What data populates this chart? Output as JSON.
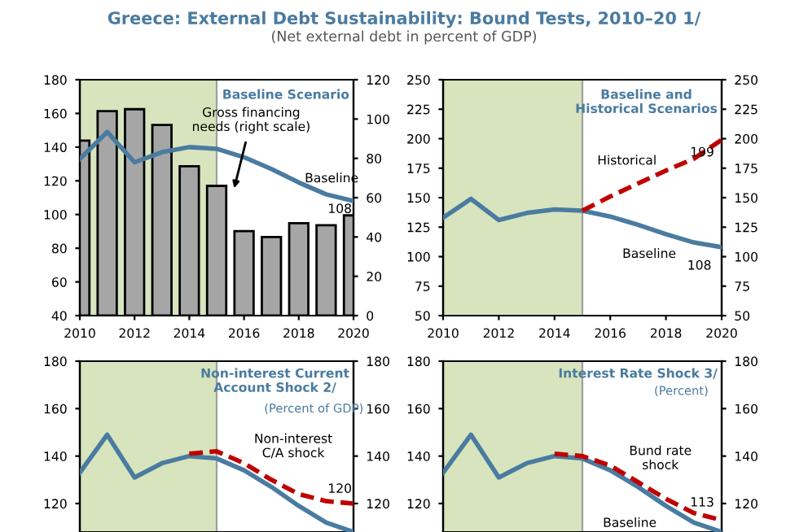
{
  "chart_data": [
    {
      "type": "line",
      "title": "Baseline Scenario",
      "x": [
        2010,
        2011,
        2012,
        2013,
        2014,
        2015,
        2016,
        2017,
        2018,
        2019,
        2020
      ],
      "series": [
        {
          "type": "bar",
          "axis": "y2",
          "color": "#a6a6a6",
          "values": [
            89,
            104,
            105,
            97,
            76,
            66,
            43,
            40,
            47,
            46,
            51
          ]
        },
        {
          "color": "#4a7ba0",
          "values": [
            133,
            149,
            131,
            137,
            140,
            139,
            134,
            127,
            119,
            112,
            108
          ]
        }
      ],
      "xlim": [
        2010,
        2020
      ],
      "xticks": [
        2010,
        2012,
        2014,
        2016,
        2018,
        2020
      ],
      "ylim": [
        40,
        180
      ],
      "yticks": [
        40,
        60,
        80,
        100,
        120,
        140,
        160,
        180
      ],
      "y2lim": [
        0,
        120
      ],
      "y2ticks": [
        0,
        20,
        40,
        60,
        80,
        100,
        120
      ],
      "bands": [
        {
          "axis": "x",
          "from": 2010,
          "to": 2015,
          "color": "#d7e4bd"
        }
      ],
      "legend": false,
      "annotations": [
        "Greece: External Debt Sustainability: Bound Tests, 2010–20 1/",
        "(Net external debt in percent of GDP)",
        {
          "text": "Gross financing needs (right scale)",
          "x": 2015.6,
          "y": 113
        },
        "Baseline",
        "108"
      ]
    },
    {
      "type": "line",
      "title": "Baseline and Historical Scenarios",
      "x": [
        2010,
        2011,
        2012,
        2013,
        2014,
        2015,
        2016,
        2017,
        2018,
        2019,
        2020
      ],
      "series": [
        {
          "color": "#4a7ba0",
          "values": [
            133,
            149,
            131,
            137,
            140,
            139,
            134,
            127,
            119,
            112,
            108
          ]
        },
        {
          "color": "#c00000",
          "line_style": "dashed",
          "x": [
            2015,
            2016,
            2017,
            2018,
            2019,
            2020
          ],
          "values": [
            139,
            151,
            162,
            173,
            183,
            199
          ]
        }
      ],
      "xlim": [
        2010,
        2020
      ],
      "xticks": [
        2010,
        2012,
        2014,
        2016,
        2018,
        2020
      ],
      "ylim": [
        50,
        250
      ],
      "yticks": [
        50,
        75,
        100,
        125,
        150,
        175,
        200,
        225,
        250
      ],
      "y2lim": [
        50,
        250
      ],
      "y2ticks": [
        50,
        75,
        100,
        125,
        150,
        175,
        200,
        225,
        250
      ],
      "bands": [
        {
          "axis": "x",
          "from": 2010,
          "to": 2015,
          "color": "#d7e4bd"
        }
      ],
      "legend": false,
      "annotations": [
        "Historical",
        "199",
        "Baseline",
        "108"
      ]
    },
    {
      "type": "line",
      "title": "Non-interest Current Account Shock 2/",
      "subtitle": "(Percent of GDP)",
      "x": [
        2010,
        2011,
        2012,
        2013,
        2014,
        2015,
        2016,
        2017,
        2018,
        2019,
        2020
      ],
      "series": [
        {
          "color": "#4a7ba0",
          "values": [
            133,
            149,
            131,
            137,
            140,
            139,
            134,
            127,
            119,
            112,
            108
          ]
        },
        {
          "color": "#c00000",
          "line_style": "dashed",
          "x": [
            2014,
            2015,
            2016,
            2017,
            2018,
            2019,
            2020
          ],
          "values": [
            141,
            142,
            137,
            130,
            124,
            121,
            120
          ]
        }
      ],
      "xlim": [
        2010,
        2020
      ],
      "ylim": [
        108,
        180
      ],
      "yticks": [
        120,
        140,
        160,
        180
      ],
      "y2lim": [
        108,
        180
      ],
      "y2ticks": [
        120,
        140,
        160,
        180
      ],
      "tick_labels": "y",
      "bands": [
        {
          "axis": "x",
          "from": 2010,
          "to": 2015,
          "color": "#d7e4bd"
        }
      ],
      "legend": false,
      "annotations": [
        "Non-interest C/A shock",
        "120"
      ]
    },
    {
      "type": "line",
      "title": "Interest Rate Shock 3/",
      "subtitle": "(Percent)",
      "x": [
        2010,
        2011,
        2012,
        2013,
        2014,
        2015,
        2016,
        2017,
        2018,
        2019,
        2020
      ],
      "series": [
        {
          "color": "#4a7ba0",
          "values": [
            133,
            149,
            131,
            137,
            140,
            139,
            134,
            127,
            119,
            112,
            108
          ]
        },
        {
          "color": "#c00000",
          "line_style": "dashed",
          "x": [
            2014,
            2015,
            2016,
            2017,
            2018,
            2019,
            2020
          ],
          "values": [
            141,
            140,
            136,
            129,
            122,
            116,
            113
          ]
        }
      ],
      "xlim": [
        2010,
        2020
      ],
      "ylim": [
        108,
        180
      ],
      "yticks": [
        120,
        140,
        160,
        180
      ],
      "y2lim": [
        108,
        180
      ],
      "y2ticks": [
        120,
        140,
        160,
        180
      ],
      "tick_labels": "y",
      "bands": [
        {
          "axis": "x",
          "from": 2010,
          "to": 2015,
          "color": "#d7e4bd"
        }
      ],
      "legend": false,
      "annotations": [
        "Bund rate shock",
        "113",
        "Baseline"
      ]
    }
  ]
}
